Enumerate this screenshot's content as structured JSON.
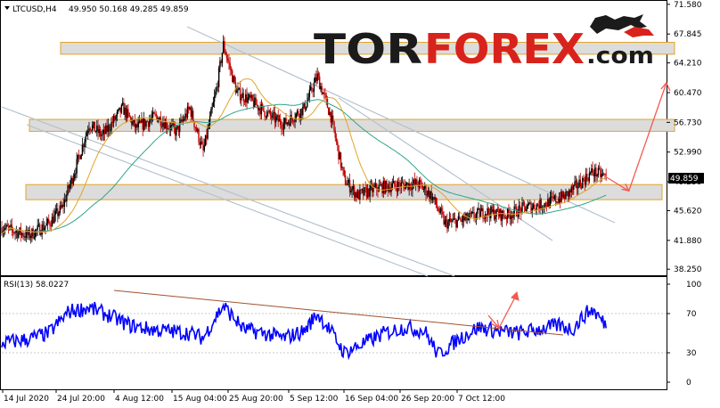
{
  "header": {
    "symbol": "LTCUSD,H4",
    "ohlc": "49.950 50.168 49.285 49.859"
  },
  "logo": {
    "part1": "TOR",
    "part2": "FOREX",
    "part3": ".com",
    "brand_dark": "#1b1b1b",
    "brand_red": "#d8231c"
  },
  "colors": {
    "bull_body": "#000000",
    "bear_body": "#c00000",
    "ma_fast": "#e1a42c",
    "ma_slow": "#2fa58c",
    "rsi_line": "#0000ff",
    "channel": "#b4c2cf",
    "zone_border": "#e1a42c",
    "zone_fill": "#dcdcdc",
    "arrow": "#f25a50",
    "rsi_trend": "#a0522d"
  },
  "price_axis": {
    "ticks": [
      "71.580",
      "67.845",
      "64.210",
      "60.470",
      "56.730",
      "52.990",
      "49.250",
      "45.620",
      "41.880",
      "38.250"
    ],
    "current_price": "49.859"
  },
  "rsi": {
    "label": "RSI(13) 58.0227",
    "ticks": [
      "100",
      "70",
      "30",
      "0"
    ]
  },
  "time_axis": {
    "labels": [
      "14 Jul 2020",
      "24 Jul 20:00",
      "4 Aug 12:00",
      "15 Aug 04:00",
      "25 Aug 20:00",
      "5 Sep 12:00",
      "16 Sep 04:00",
      "26 Sep 20:00",
      "7 Oct 12:00"
    ]
  },
  "chart_data": [
    {
      "type": "candlestick",
      "symbol": "LTCUSD",
      "timeframe": "H4",
      "y_axis_ticks": [
        71.58,
        67.845,
        64.21,
        60.47,
        56.73,
        52.99,
        49.25,
        45.62,
        41.88,
        38.25
      ],
      "ylim": [
        37.6,
        71.9
      ],
      "x_tick_labels": [
        "14 Jul 2020",
        "24 Jul 20:00",
        "4 Aug 12:00",
        "15 Aug 04:00",
        "25 Aug 20:00",
        "5 Sep 12:00",
        "16 Sep 04:00",
        "26 Sep 20:00",
        "7 Oct 12:00"
      ],
      "close_anchors": [
        {
          "date": "2020-07-14",
          "close": 43.5
        },
        {
          "date": "2020-07-18",
          "close": 42.5
        },
        {
          "date": "2020-07-21",
          "close": 44.0
        },
        {
          "date": "2020-07-23",
          "close": 46.0
        },
        {
          "date": "2020-07-25",
          "close": 51.0
        },
        {
          "date": "2020-07-27",
          "close": 56.5
        },
        {
          "date": "2020-07-29",
          "close": 55.0
        },
        {
          "date": "2020-08-01",
          "close": 58.5
        },
        {
          "date": "2020-08-03",
          "close": 56.0
        },
        {
          "date": "2020-08-06",
          "close": 57.5
        },
        {
          "date": "2020-08-09",
          "close": 55.5
        },
        {
          "date": "2020-08-11",
          "close": 58.5
        },
        {
          "date": "2020-08-13",
          "close": 53.0
        },
        {
          "date": "2020-08-15",
          "close": 61.0
        },
        {
          "date": "2020-08-16",
          "close": 66.5
        },
        {
          "date": "2020-08-18",
          "close": 60.5
        },
        {
          "date": "2020-08-20",
          "close": 59.5
        },
        {
          "date": "2020-08-23",
          "close": 57.5
        },
        {
          "date": "2020-08-25",
          "close": 56.5
        },
        {
          "date": "2020-08-28",
          "close": 58.5
        },
        {
          "date": "2020-08-30",
          "close": 62.5
        },
        {
          "date": "2020-09-01",
          "close": 57.5
        },
        {
          "date": "2020-09-03",
          "close": 49.5
        },
        {
          "date": "2020-09-05",
          "close": 47.5
        },
        {
          "date": "2020-09-08",
          "close": 48.5
        },
        {
          "date": "2020-09-11",
          "close": 48.8
        },
        {
          "date": "2020-09-14",
          "close": 49.0
        },
        {
          "date": "2020-09-16",
          "close": 47.5
        },
        {
          "date": "2020-09-18",
          "close": 44.0
        },
        {
          "date": "2020-09-21",
          "close": 44.5
        },
        {
          "date": "2020-09-24",
          "close": 45.5
        },
        {
          "date": "2020-09-27",
          "close": 45.0
        },
        {
          "date": "2020-09-30",
          "close": 46.0
        },
        {
          "date": "2020-10-03",
          "close": 46.5
        },
        {
          "date": "2020-10-06",
          "close": 47.5
        },
        {
          "date": "2020-10-08",
          "close": 49.0
        },
        {
          "date": "2020-10-10",
          "close": 50.5
        },
        {
          "date": "2020-10-12",
          "close": 49.86
        }
      ],
      "horizontal_zones": [
        [
          65.3,
          66.8
        ],
        [
          55.6,
          57.1
        ],
        [
          47.0,
          48.9
        ]
      ],
      "projection": [
        {
          "date": "2020-10-12",
          "value": 49.86
        },
        {
          "date": "2020-10-13",
          "value": 48.1
        },
        {
          "date": "2020-10-17",
          "value": 61.7
        }
      ]
    },
    {
      "type": "line",
      "indicator": "RSI(13)",
      "last_value": 58.0227,
      "y_axis_ticks": [
        100,
        70,
        30,
        0
      ],
      "ylim": [
        0,
        100
      ],
      "rsi_anchors": [
        {
          "date": "2020-07-14",
          "value": 40
        },
        {
          "date": "2020-07-18",
          "value": 44
        },
        {
          "date": "2020-07-21",
          "value": 50
        },
        {
          "date": "2020-07-24",
          "value": 72
        },
        {
          "date": "2020-07-27",
          "value": 76
        },
        {
          "date": "2020-07-30",
          "value": 68
        },
        {
          "date": "2020-08-02",
          "value": 58
        },
        {
          "date": "2020-08-05",
          "value": 54
        },
        {
          "date": "2020-08-08",
          "value": 52
        },
        {
          "date": "2020-08-11",
          "value": 50
        },
        {
          "date": "2020-08-13",
          "value": 45
        },
        {
          "date": "2020-08-15",
          "value": 68
        },
        {
          "date": "2020-08-16",
          "value": 78
        },
        {
          "date": "2020-08-19",
          "value": 54
        },
        {
          "date": "2020-08-22",
          "value": 50
        },
        {
          "date": "2020-08-25",
          "value": 45
        },
        {
          "date": "2020-08-28",
          "value": 52
        },
        {
          "date": "2020-08-30",
          "value": 70
        },
        {
          "date": "2020-09-01",
          "value": 52
        },
        {
          "date": "2020-09-03",
          "value": 30
        },
        {
          "date": "2020-09-06",
          "value": 40
        },
        {
          "date": "2020-09-09",
          "value": 50
        },
        {
          "date": "2020-09-12",
          "value": 56
        },
        {
          "date": "2020-09-15",
          "value": 52
        },
        {
          "date": "2020-09-17",
          "value": 28
        },
        {
          "date": "2020-09-20",
          "value": 44
        },
        {
          "date": "2020-09-23",
          "value": 56
        },
        {
          "date": "2020-09-26",
          "value": 52
        },
        {
          "date": "2020-09-29",
          "value": 50
        },
        {
          "date": "2020-10-02",
          "value": 54
        },
        {
          "date": "2020-10-05",
          "value": 58
        },
        {
          "date": "2020-10-07",
          "value": 54
        },
        {
          "date": "2020-10-09",
          "value": 70
        },
        {
          "date": "2020-10-10",
          "value": 74
        },
        {
          "date": "2020-10-12",
          "value": 58
        }
      ]
    }
  ]
}
